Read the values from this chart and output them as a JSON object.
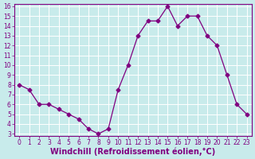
{
  "x": [
    0,
    1,
    2,
    3,
    4,
    5,
    6,
    7,
    8,
    9,
    10,
    11,
    12,
    13,
    14,
    15,
    16,
    17,
    18,
    19,
    20,
    21,
    22,
    23
  ],
  "y": [
    8.0,
    7.5,
    6.0,
    6.0,
    5.5,
    5.0,
    4.5,
    3.5,
    3.0,
    3.5,
    7.5,
    10.0,
    13.0,
    14.5,
    14.5,
    16.0,
    14.0,
    15.0,
    15.0,
    13.0,
    12.0,
    9.0,
    6.0,
    5.0
  ],
  "line_color": "#800080",
  "marker": "D",
  "markersize": 2.5,
  "linewidth": 0.9,
  "xlabel": "Windchill (Refroidissement éolien,°C)",
  "xlabel_fontsize": 7,
  "ylim_min": 3,
  "ylim_max": 16,
  "xlim_min": 0,
  "xlim_max": 23,
  "yticks": [
    3,
    4,
    5,
    6,
    7,
    8,
    9,
    10,
    11,
    12,
    13,
    14,
    15,
    16
  ],
  "xticks": [
    0,
    1,
    2,
    3,
    4,
    5,
    6,
    7,
    8,
    9,
    10,
    11,
    12,
    13,
    14,
    15,
    16,
    17,
    18,
    19,
    20,
    21,
    22,
    23
  ],
  "tick_fontsize": 5.5,
  "bg_color": "#c8ebeb",
  "grid_color": "#ffffff",
  "grid_linewidth": 0.7,
  "spine_color": "#800080",
  "label_color": "#800080"
}
